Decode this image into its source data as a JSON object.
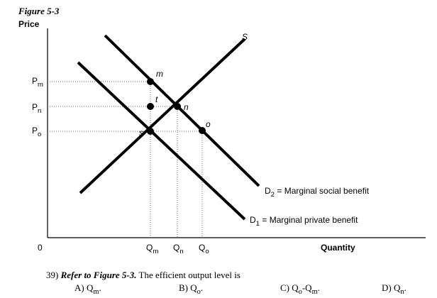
{
  "figure_label": "Figure 5-3",
  "y_axis_label": "Price",
  "x_axis_label": "Quantity",
  "origin": "0",
  "price_labels": [
    [
      {
        "text": "P"
      },
      {
        "text": "m",
        "sub": true
      }
    ],
    [
      {
        "text": "P"
      },
      {
        "text": "n",
        "sub": true
      }
    ],
    [
      {
        "text": "P"
      },
      {
        "text": "o",
        "sub": true
      }
    ]
  ],
  "quantity_labels": [
    [
      {
        "text": "Q"
      },
      {
        "text": "m",
        "sub": true
      }
    ],
    [
      {
        "text": "Q"
      },
      {
        "text": "n",
        "sub": true
      }
    ],
    [
      {
        "text": "Q"
      },
      {
        "text": "o",
        "sub": true
      }
    ]
  ],
  "point_labels": [
    "m",
    "t",
    "n",
    "o",
    "s"
  ],
  "supply_label": "S",
  "demand_labels": [
    [
      {
        "text": "D"
      },
      {
        "text": "2",
        "sub": true
      },
      {
        "text": " = Marginal social benefit"
      }
    ],
    [
      {
        "text": "D"
      },
      {
        "text": "1",
        "sub": true
      },
      {
        "text": " = Marginal private benefit"
      }
    ]
  ],
  "question": [
    {
      "text": "39) "
    },
    {
      "text": "Refer to Figure 5-3.",
      "emphasis": true
    },
    {
      "text": " The efficient output level is"
    }
  ],
  "options": [
    [
      {
        "text": "A) Q"
      },
      {
        "text": "m",
        "sub": true
      },
      {
        "text": "."
      }
    ],
    [
      {
        "text": "B) Q"
      },
      {
        "text": "o",
        "sub": true
      },
      {
        "text": "."
      }
    ],
    [
      {
        "text": "C) Q"
      },
      {
        "text": "o",
        "sub": true
      },
      {
        "text": "-Q"
      },
      {
        "text": "m",
        "sub": true
      },
      {
        "text": "."
      }
    ],
    [
      {
        "text": "D) Q"
      },
      {
        "text": "n",
        "sub": true
      },
      {
        "text": "."
      }
    ]
  ]
}
